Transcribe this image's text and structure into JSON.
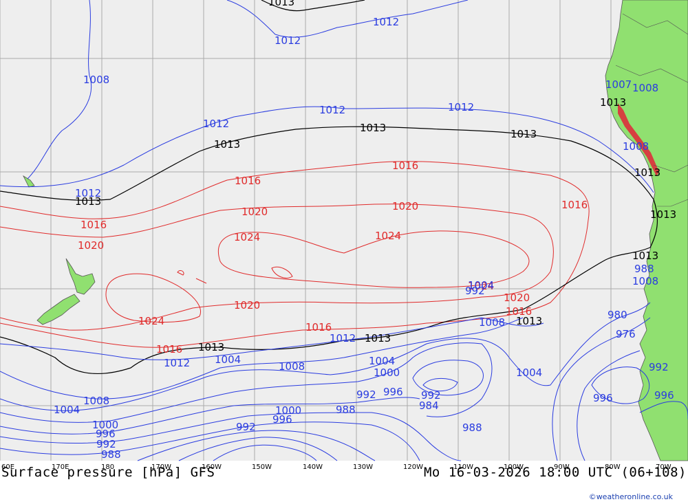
{
  "title": "Surface pressure [hPa] GFS",
  "valid_time": "Mo 16-03-2026 18:00 UTC (06+108)",
  "credit": "©weatheronline.co.uk",
  "colors": {
    "ocean": "#eeeeee",
    "land": "#90e070",
    "grid": "#aaaaaa",
    "low": "#2a3ce0",
    "mean": "#000000",
    "high": "#e02a2a",
    "coast": "#555555"
  },
  "longitude_ticks": [
    "60E",
    "170E",
    "180",
    "170W",
    "160W",
    "150W",
    "140W",
    "130W",
    "120W",
    "110W",
    "100W",
    "90W",
    "80W",
    "70W"
  ],
  "isobar_labels": [
    {
      "value": "1013",
      "color": "mean"
    },
    {
      "value": "1012",
      "color": "low"
    },
    {
      "value": "1012",
      "color": "low"
    },
    {
      "value": "1008",
      "color": "low"
    },
    {
      "value": "1012",
      "color": "low"
    },
    {
      "value": "1012",
      "color": "low"
    },
    {
      "value": "1012",
      "color": "low"
    },
    {
      "value": "1013",
      "color": "mean"
    },
    {
      "value": "1013",
      "color": "mean"
    },
    {
      "value": "1013",
      "color": "mean"
    },
    {
      "value": "1012",
      "color": "low"
    },
    {
      "value": "1013",
      "color": "mean"
    },
    {
      "value": "1016",
      "color": "high"
    },
    {
      "value": "1016",
      "color": "high"
    },
    {
      "value": "1016",
      "color": "high"
    },
    {
      "value": "1016",
      "color": "high"
    },
    {
      "value": "1020",
      "color": "high"
    },
    {
      "value": "1020",
      "color": "high"
    },
    {
      "value": "1020",
      "color": "high"
    },
    {
      "value": "1024",
      "color": "high"
    },
    {
      "value": "1024",
      "color": "high"
    },
    {
      "value": "1024",
      "color": "high"
    },
    {
      "value": "1024",
      "color": "high"
    },
    {
      "value": "1020",
      "color": "high"
    },
    {
      "value": "1020",
      "color": "high"
    },
    {
      "value": "1016",
      "color": "high"
    },
    {
      "value": "1016",
      "color": "high"
    },
    {
      "value": "1016",
      "color": "high"
    },
    {
      "value": "1012",
      "color": "low"
    },
    {
      "value": "1013",
      "color": "mean"
    },
    {
      "value": "1013",
      "color": "mean"
    },
    {
      "value": "1012",
      "color": "low"
    },
    {
      "value": "1013",
      "color": "mean"
    },
    {
      "value": "1008",
      "color": "low"
    },
    {
      "value": "1013",
      "color": "mean"
    },
    {
      "value": "1008",
      "color": "low"
    },
    {
      "value": "1007",
      "color": "low"
    },
    {
      "value": "1008",
      "color": "low"
    },
    {
      "value": "1013",
      "color": "mean"
    },
    {
      "value": "1013",
      "color": "mean"
    },
    {
      "value": "1013",
      "color": "mean"
    },
    {
      "value": "1008",
      "color": "low"
    },
    {
      "value": "1004",
      "color": "low"
    },
    {
      "value": "1008",
      "color": "low"
    },
    {
      "value": "1004",
      "color": "low"
    },
    {
      "value": "1000",
      "color": "low"
    },
    {
      "value": "1004",
      "color": "low"
    },
    {
      "value": "1008",
      "color": "low"
    },
    {
      "value": "1004",
      "color": "low"
    },
    {
      "value": "1000",
      "color": "low"
    },
    {
      "value": "996",
      "color": "low"
    },
    {
      "value": "992",
      "color": "low"
    },
    {
      "value": "988",
      "color": "low"
    },
    {
      "value": "992",
      "color": "low"
    },
    {
      "value": "996",
      "color": "low"
    },
    {
      "value": "992",
      "color": "low"
    },
    {
      "value": "988",
      "color": "low"
    },
    {
      "value": "984",
      "color": "low"
    },
    {
      "value": "980",
      "color": "low"
    },
    {
      "value": "976",
      "color": "low"
    },
    {
      "value": "996",
      "color": "low"
    },
    {
      "value": "992",
      "color": "low"
    },
    {
      "value": "996",
      "color": "low"
    },
    {
      "value": "1000",
      "color": "low"
    },
    {
      "value": "996",
      "color": "low"
    },
    {
      "value": "992",
      "color": "low"
    },
    {
      "value": "988",
      "color": "low"
    },
    {
      "value": "988",
      "color": "low"
    },
    {
      "value": "992",
      "color": "low"
    },
    {
      "value": "1004",
      "color": "low"
    },
    {
      "value": "1008",
      "color": "low"
    },
    {
      "value": "1012",
      "color": "low"
    }
  ]
}
